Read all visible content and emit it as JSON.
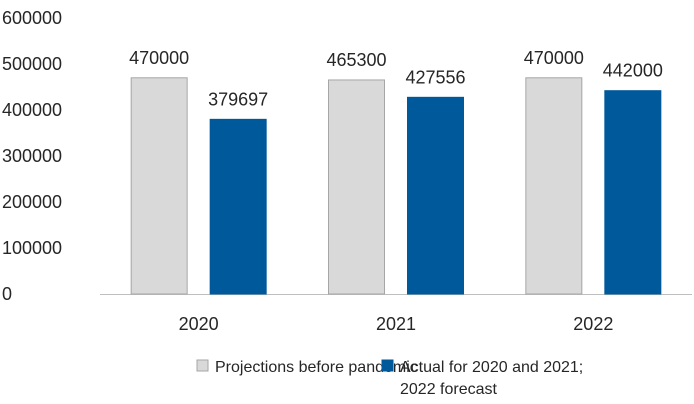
{
  "chart_data": {
    "type": "bar",
    "categories": [
      "2020",
      "2021",
      "2022"
    ],
    "series": [
      {
        "name": "Projections before pandemic",
        "values": [
          470000,
          465300,
          470000
        ],
        "color": "#d9d9d9",
        "stroke": "#a6a6a6"
      },
      {
        "name_lines": [
          "Actual for 2020 and 2021;",
          "2022 forecast"
        ],
        "values": [
          379697,
          427556,
          442000
        ],
        "color": "#00599a",
        "stroke": "#00599a"
      }
    ],
    "ylim": [
      0,
      600000
    ],
    "yticks": [
      0,
      100000,
      200000,
      300000,
      400000,
      500000,
      600000
    ],
    "grid": false,
    "legend_position": "bottom"
  }
}
